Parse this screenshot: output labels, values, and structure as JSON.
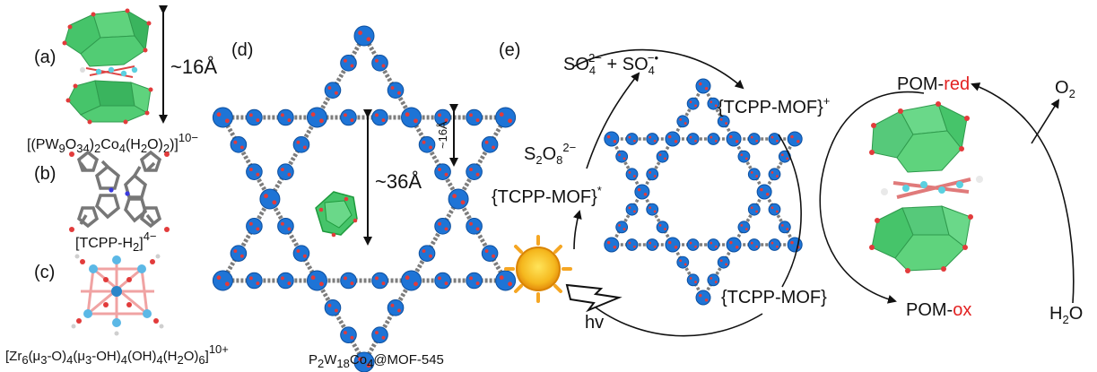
{
  "panels": {
    "a": "(a)",
    "b": "(b)",
    "c": "(c)",
    "d": "(d)",
    "e": "(e)"
  },
  "formulas": {
    "pom": {
      "p1": "[(PW",
      "s1": "9",
      "p2": "O",
      "s2": "34",
      "p3": ")",
      "s3": "2",
      "p4": "Co",
      "s4": "4",
      "p5": "(H",
      "s5": "2",
      "p6": "O)",
      "s6": "2",
      "p7": ")]",
      "sup": "10−"
    },
    "tcpp": {
      "p1": "[TCPP-H",
      "s1": "2",
      "p2": "]",
      "sup": "4−"
    },
    "zr": {
      "p1": "[Zr",
      "s1": "6",
      "p2": "(μ",
      "s2": "3",
      "p3": "-O)",
      "s3": "4",
      "p4": "(μ",
      "s4": "3",
      "p5": "-OH)",
      "s5": "4",
      "p6": "(OH)",
      "s6": "4",
      "p7": "(H",
      "s7": "2",
      "p8": "O)",
      "s8": "6",
      "p9": "]",
      "sup": "10+"
    },
    "composite": {
      "p1": "P",
      "s1": "2",
      "p2": "W",
      "s2": "18",
      "p3": "Co",
      "s3": "4",
      "p4": "@MOF-545"
    }
  },
  "dimensions": {
    "pom_height": "~16Å",
    "pore_large": "~36Å",
    "pore_small": "~16Å"
  },
  "cycle": {
    "sulfate": {
      "p1": "SO",
      "s1": "4",
      "sup1": "2−",
      "mid": " + SO",
      "s2": "4",
      "sup2": "−•"
    },
    "persulfate": {
      "p1": "S",
      "s1": "2",
      "p2": "O",
      "s2": "8",
      "sup": "2−"
    },
    "mof_plus": {
      "text": "{TCPP-MOF}",
      "sup": "+"
    },
    "mof_star": {
      "text": "{TCPP-MOF}",
      "sup": "*"
    },
    "mof": "{TCPP-MOF}",
    "hv": "hv",
    "pom_red": {
      "prefix": "POM-",
      "suffix": "red"
    },
    "pom_ox": {
      "prefix": "POM-",
      "suffix": "ox"
    },
    "o2": {
      "p1": "O",
      "s1": "2"
    },
    "h2o": {
      "p1": "H",
      "s1": "2",
      "p2": "O"
    }
  },
  "colors": {
    "node_blue": "#1e74d6",
    "linker_gray": "#7d7d7d",
    "polyhedra_green": "#46c46a",
    "oxygen_red": "#e23b3b",
    "cobalt_cyan": "#5bd0e0",
    "sun_orange": "#f5a623",
    "highlight_red": "#e32222"
  }
}
